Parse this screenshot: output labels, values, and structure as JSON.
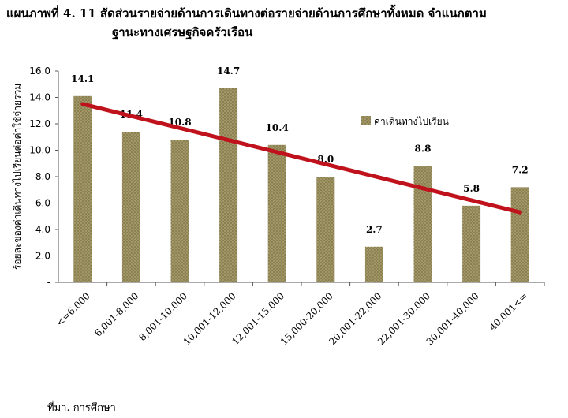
{
  "title": {
    "line1": "แผนภาพที่ 4. 11 สัดส่วนรายจ่ายด้านการเดินทางต่อรายจ่ายด้านการศึกษาทั้งหมด จำแนกตาม",
    "line2": "ฐานะทางเศรษฐกิจครัวเรือน"
  },
  "source": "ที่มา. การศึกษา",
  "colors": {
    "bar": "#8b8050",
    "trend": "#c0121c",
    "axis": "#555555"
  },
  "chart_data": {
    "type": "bar",
    "categories": [
      "<=6,000",
      "6,001-8,000",
      "8,001-10,000",
      "10,001-12,000",
      "12,001-15,000",
      "15,000-20,000",
      "20,001-22,000",
      "22,001-30,000",
      "30,001-40,000",
      "40,001<="
    ],
    "series": [
      {
        "name": "ค่าเดินทางไปเรียน",
        "values": [
          14.1,
          11.4,
          10.8,
          14.7,
          10.4,
          8.0,
          2.7,
          8.8,
          5.8,
          7.2
        ]
      }
    ],
    "data_labels": [
      "14.1",
      "11.4",
      "10.8",
      "14.7",
      "10.4",
      "8.0",
      "2.7",
      "8.8",
      "5.8",
      "7.2"
    ],
    "trendline": {
      "type": "linear",
      "start": 13.5,
      "end": 5.3
    },
    "ylabel": "ร้อยละของค่าเดินทางไปเรียนต่อค่าใช้จ่ายรวม",
    "xlabel": "",
    "ylim": [
      0,
      16
    ],
    "yticks": [
      "-",
      "2.0",
      "4.0",
      "6.0",
      "8.0",
      "10.0",
      "12.0",
      "14.0",
      "16.0"
    ],
    "grid": false,
    "legend": "top-right"
  }
}
